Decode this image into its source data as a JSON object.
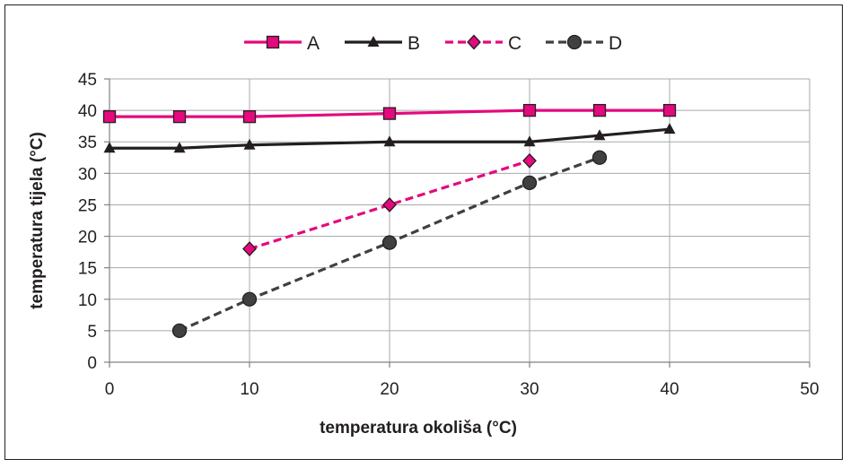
{
  "chart_data": {
    "type": "line",
    "title": "",
    "xlabel": "temperatura okoliša (°C)",
    "ylabel": "temperatura tijela (°C)",
    "xlim": [
      0,
      50
    ],
    "ylim": [
      0,
      45
    ],
    "xticks": [
      0,
      10,
      20,
      30,
      40,
      50
    ],
    "yticks": [
      0,
      5,
      10,
      15,
      20,
      25,
      30,
      35,
      40,
      45
    ],
    "grid": "vertical and horizontal",
    "legend_position": "top",
    "series": [
      {
        "name": "A",
        "color": "#e4097d",
        "dashed": false,
        "marker": "square",
        "x": [
          0,
          5,
          10,
          20,
          30,
          35,
          40
        ],
        "y": [
          39,
          39,
          39,
          39.5,
          40,
          40,
          40
        ]
      },
      {
        "name": "B",
        "color": "#231f20",
        "dashed": false,
        "marker": "triangle",
        "x": [
          0,
          5,
          10,
          20,
          30,
          35,
          40
        ],
        "y": [
          34,
          34,
          34.5,
          35,
          35,
          36,
          37
        ]
      },
      {
        "name": "C",
        "color": "#e4097d",
        "dashed": true,
        "marker": "diamond",
        "x": [
          10,
          20,
          30
        ],
        "y": [
          18,
          25,
          32
        ]
      },
      {
        "name": "D",
        "color": "#404041",
        "dashed": true,
        "marker": "circle",
        "x": [
          5,
          10,
          20,
          30,
          35
        ],
        "y": [
          5,
          10,
          19,
          28.5,
          32.5
        ]
      }
    ]
  }
}
